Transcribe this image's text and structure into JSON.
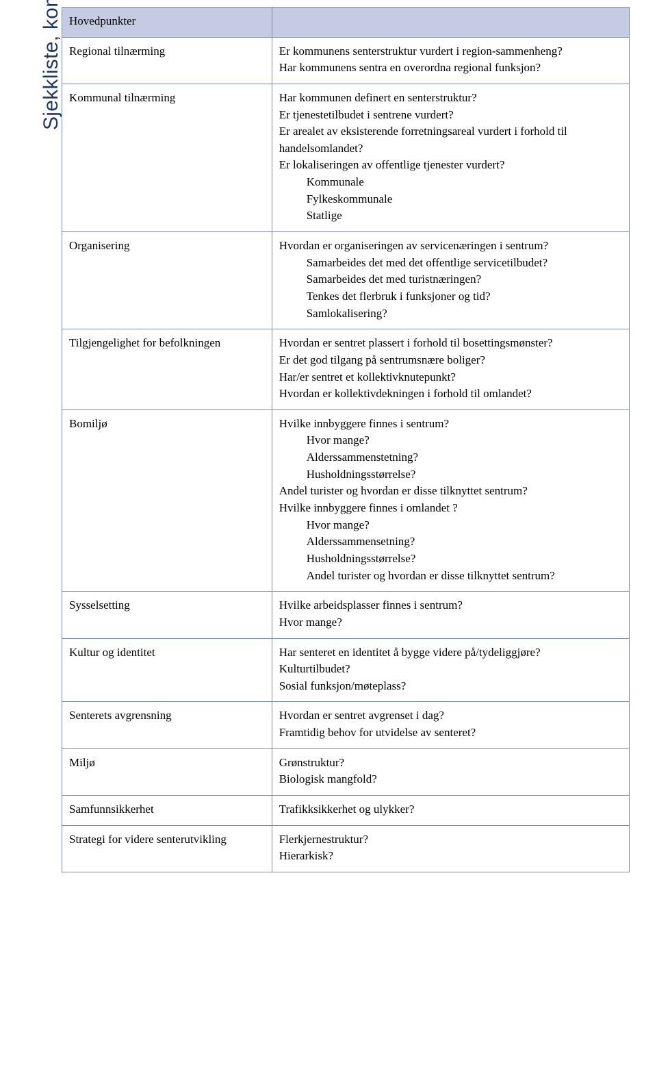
{
  "colors": {
    "header_bg": "#c5cbe3",
    "border": "#7a8aa8",
    "sidebar_text": "#203864",
    "body_text": "#000000",
    "page_bg": "#ffffff"
  },
  "typography": {
    "body_family": "Times New Roman",
    "body_size_pt": 12,
    "sidebar_family": "Arial",
    "sidebar_size_pt": 22
  },
  "sidebar": {
    "label": "Sjekkliste, kommuneplan"
  },
  "table": {
    "header": {
      "left": "Hovedpunkter",
      "right": ""
    },
    "rows": [
      {
        "label": "Regional tilnærming",
        "lines": [
          {
            "text": "Er kommunens senterstruktur vurdert i region-sammenheng?"
          },
          {
            "text": "Har kommunens sentra en overordna regional funksjon?"
          }
        ]
      },
      {
        "label": "Kommunal tilnærming",
        "lines": [
          {
            "text": "Har kommunen definert en senterstruktur?"
          },
          {
            "text": "Er tjenestetilbudet i sentrene vurdert?"
          },
          {
            "text": "Er arealet av eksisterende forretningsareal vurdert i forhold til  handelsomlandet?"
          },
          {
            "text": "Er lokaliseringen av offentlige tjenester vurdert?"
          },
          {
            "text": "Kommunale",
            "indent": true
          },
          {
            "text": "Fylkeskommunale",
            "indent": true
          },
          {
            "text": "Statlige",
            "indent": true
          }
        ]
      },
      {
        "label": "Organisering",
        "lines": [
          {
            "text": "Hvordan er organiseringen av servicenæringen i sentrum?"
          },
          {
            "text": "Samarbeides det med det offentlige servicetilbudet?",
            "indent": true
          },
          {
            "text": "Samarbeides det med turistnæringen?",
            "indent": true
          },
          {
            "text": "Tenkes det flerbruk i funksjoner og tid?",
            "indent": true
          },
          {
            "text": "Samlokalisering?",
            "indent": true
          }
        ]
      },
      {
        "label": "Tilgjengelighet for befolkningen",
        "lines": [
          {
            "text": "Hvordan er sentret plassert i forhold til bosettingsmønster?"
          },
          {
            "text": "Er det god tilgang på sentrumsnære boliger?"
          },
          {
            "text": "Har/er sentret et kollektivknutepunkt?"
          },
          {
            "text": "Hvordan er kollektivdekningen i forhold til omlandet?"
          }
        ]
      },
      {
        "label": "Bomiljø",
        "lines": [
          {
            "text": "Hvilke innbyggere finnes i sentrum?"
          },
          {
            "text": "Hvor mange?",
            "indent": true
          },
          {
            "text": "Alderssammenstetning?",
            "indent": true
          },
          {
            "text": "Husholdningsstørrelse?",
            "indent": true
          },
          {
            "text": "Andel turister og hvordan er disse tilknyttet sentrum?"
          },
          {
            "text": "Hvilke innbyggere finnes i omlandet ?"
          },
          {
            "text": "Hvor mange?",
            "indent": true
          },
          {
            "text": "Alderssammensetning?",
            "indent": true
          },
          {
            "text": "Husholdningsstørrelse?",
            "indent": true
          },
          {
            "text": "Andel turister og hvordan er disse tilknyttet sentrum?",
            "indent": true
          }
        ]
      },
      {
        "label": "Sysselsetting",
        "lines": [
          {
            "text": "Hvilke arbeidsplasser finnes i sentrum?"
          },
          {
            "text": "Hvor mange?"
          }
        ]
      },
      {
        "label": "Kultur og identitet",
        "lines": [
          {
            "text": "Har senteret en identitet å bygge videre på/tydeliggjøre?"
          },
          {
            "text": "Kulturtilbudet?"
          },
          {
            "text": "Sosial funksjon/møteplass?"
          }
        ]
      },
      {
        "label": "Senterets avgrensning",
        "lines": [
          {
            "text": "Hvordan er sentret avgrenset i dag?"
          },
          {
            "text": "Framtidig behov for utvidelse av senteret?"
          }
        ]
      },
      {
        "label": "Miljø",
        "lines": [
          {
            "text": "Grønstruktur?"
          },
          {
            "text": "Biologisk mangfold?"
          }
        ]
      },
      {
        "label": "Samfunnsikkerhet",
        "lines": [
          {
            "text": "Trafikksikkerhet og ulykker?"
          }
        ]
      },
      {
        "label": "Strategi for videre senterutvikling",
        "lines": [
          {
            "text": "Flerkjernestruktur?"
          },
          {
            "text": "Hierarkisk?"
          }
        ]
      }
    ]
  }
}
